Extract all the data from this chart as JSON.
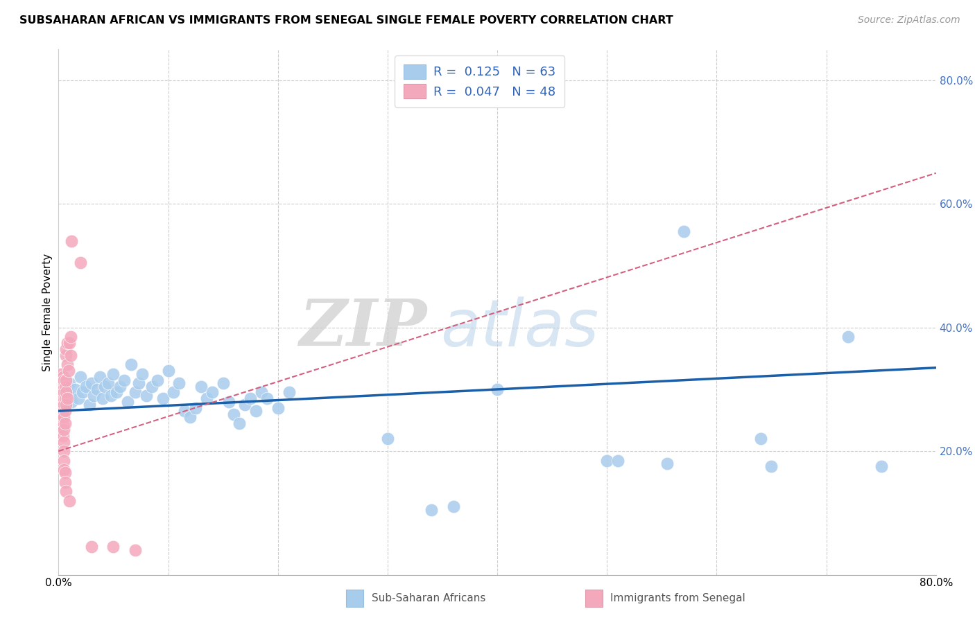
{
  "title": "SUBSAHARAN AFRICAN VS IMMIGRANTS FROM SENEGAL SINGLE FEMALE POVERTY CORRELATION CHART",
  "source": "Source: ZipAtlas.com",
  "ylabel": "Single Female Poverty",
  "xlim": [
    0.0,
    0.8
  ],
  "ylim": [
    0.0,
    0.85
  ],
  "blue_r": 0.125,
  "blue_n": 63,
  "pink_r": 0.047,
  "pink_n": 48,
  "blue_color": "#A8CCEC",
  "blue_line_color": "#1A5FA8",
  "pink_color": "#F4A8BC",
  "pink_line_color": "#D46080",
  "legend_label_blue": "Sub-Saharan Africans",
  "legend_label_pink": "Immigrants from Senegal",
  "watermark_zip": "ZIP",
  "watermark_atlas": "atlas",
  "blue_trend_start_y": 0.265,
  "blue_trend_end_y": 0.335,
  "pink_trend_start_y": 0.2,
  "pink_trend_end_y": 0.65,
  "blue_points": [
    [
      0.005,
      0.275
    ],
    [
      0.008,
      0.295
    ],
    [
      0.01,
      0.31
    ],
    [
      0.012,
      0.28
    ],
    [
      0.015,
      0.3
    ],
    [
      0.018,
      0.285
    ],
    [
      0.02,
      0.32
    ],
    [
      0.022,
      0.295
    ],
    [
      0.025,
      0.305
    ],
    [
      0.028,
      0.275
    ],
    [
      0.03,
      0.31
    ],
    [
      0.032,
      0.29
    ],
    [
      0.035,
      0.3
    ],
    [
      0.038,
      0.32
    ],
    [
      0.04,
      0.285
    ],
    [
      0.042,
      0.305
    ],
    [
      0.045,
      0.31
    ],
    [
      0.048,
      0.29
    ],
    [
      0.05,
      0.325
    ],
    [
      0.053,
      0.295
    ],
    [
      0.056,
      0.305
    ],
    [
      0.06,
      0.315
    ],
    [
      0.063,
      0.28
    ],
    [
      0.066,
      0.34
    ],
    [
      0.07,
      0.295
    ],
    [
      0.073,
      0.31
    ],
    [
      0.076,
      0.325
    ],
    [
      0.08,
      0.29
    ],
    [
      0.085,
      0.305
    ],
    [
      0.09,
      0.315
    ],
    [
      0.095,
      0.285
    ],
    [
      0.1,
      0.33
    ],
    [
      0.105,
      0.295
    ],
    [
      0.11,
      0.31
    ],
    [
      0.115,
      0.265
    ],
    [
      0.12,
      0.255
    ],
    [
      0.125,
      0.27
    ],
    [
      0.13,
      0.305
    ],
    [
      0.135,
      0.285
    ],
    [
      0.14,
      0.295
    ],
    [
      0.15,
      0.31
    ],
    [
      0.155,
      0.28
    ],
    [
      0.16,
      0.26
    ],
    [
      0.165,
      0.245
    ],
    [
      0.17,
      0.275
    ],
    [
      0.175,
      0.285
    ],
    [
      0.18,
      0.265
    ],
    [
      0.185,
      0.295
    ],
    [
      0.19,
      0.285
    ],
    [
      0.2,
      0.27
    ],
    [
      0.21,
      0.295
    ],
    [
      0.3,
      0.22
    ],
    [
      0.34,
      0.105
    ],
    [
      0.36,
      0.11
    ],
    [
      0.4,
      0.3
    ],
    [
      0.5,
      0.185
    ],
    [
      0.51,
      0.185
    ],
    [
      0.555,
      0.18
    ],
    [
      0.57,
      0.555
    ],
    [
      0.64,
      0.22
    ],
    [
      0.65,
      0.175
    ],
    [
      0.72,
      0.385
    ],
    [
      0.75,
      0.175
    ]
  ],
  "pink_points": [
    [
      0.002,
      0.28
    ],
    [
      0.002,
      0.3
    ],
    [
      0.002,
      0.325
    ],
    [
      0.003,
      0.265
    ],
    [
      0.003,
      0.31
    ],
    [
      0.003,
      0.29
    ],
    [
      0.003,
      0.27
    ],
    [
      0.003,
      0.25
    ],
    [
      0.004,
      0.3
    ],
    [
      0.004,
      0.28
    ],
    [
      0.004,
      0.32
    ],
    [
      0.004,
      0.26
    ],
    [
      0.004,
      0.24
    ],
    [
      0.004,
      0.225
    ],
    [
      0.005,
      0.295
    ],
    [
      0.005,
      0.275
    ],
    [
      0.005,
      0.315
    ],
    [
      0.005,
      0.255
    ],
    [
      0.005,
      0.235
    ],
    [
      0.005,
      0.215
    ],
    [
      0.005,
      0.2
    ],
    [
      0.005,
      0.185
    ],
    [
      0.005,
      0.17
    ],
    [
      0.006,
      0.285
    ],
    [
      0.006,
      0.265
    ],
    [
      0.006,
      0.305
    ],
    [
      0.006,
      0.245
    ],
    [
      0.006,
      0.165
    ],
    [
      0.006,
      0.15
    ],
    [
      0.007,
      0.275
    ],
    [
      0.007,
      0.295
    ],
    [
      0.007,
      0.315
    ],
    [
      0.007,
      0.355
    ],
    [
      0.007,
      0.365
    ],
    [
      0.007,
      0.135
    ],
    [
      0.008,
      0.285
    ],
    [
      0.008,
      0.375
    ],
    [
      0.008,
      0.34
    ],
    [
      0.009,
      0.33
    ],
    [
      0.01,
      0.12
    ],
    [
      0.01,
      0.375
    ],
    [
      0.011,
      0.385
    ],
    [
      0.011,
      0.355
    ],
    [
      0.012,
      0.54
    ],
    [
      0.02,
      0.505
    ],
    [
      0.03,
      0.045
    ],
    [
      0.05,
      0.045
    ],
    [
      0.07,
      0.04
    ]
  ]
}
